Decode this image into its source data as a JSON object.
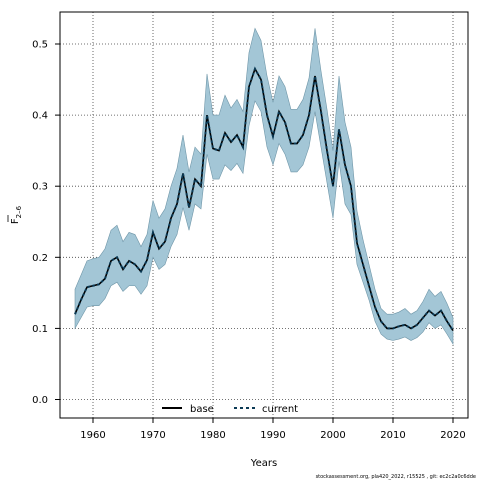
{
  "chart_data": {
    "type": "line",
    "title": "",
    "xlabel": "Years",
    "ylabel": "F̅ 2–6",
    "ylabel_main": "F",
    "ylabel_sub": "2–6",
    "xlim": [
      1954.5,
      2022.5
    ],
    "ylim": [
      -0.026,
      0.545
    ],
    "x_ticks": [
      1960,
      1970,
      1980,
      1990,
      2000,
      2010,
      2020
    ],
    "y_ticks": [
      0.0,
      0.1,
      0.2,
      0.3,
      0.4,
      0.5
    ],
    "y_tick_labels": [
      "0.0",
      "0.1",
      "0.2",
      "0.3",
      "0.4",
      "0.5"
    ],
    "grid": true,
    "legend_position": "bottom-center",
    "legend": [
      "base",
      "current"
    ],
    "colors": {
      "band": "#a3c6d6",
      "band_edge": "#6f96a8",
      "base": "#000000",
      "current": "#0b3a55"
    },
    "years": [
      1957,
      1958,
      1959,
      1960,
      1961,
      1962,
      1963,
      1964,
      1965,
      1966,
      1967,
      1968,
      1969,
      1970,
      1971,
      1972,
      1973,
      1974,
      1975,
      1976,
      1977,
      1978,
      1979,
      1980,
      1981,
      1982,
      1983,
      1984,
      1985,
      1986,
      1987,
      1988,
      1989,
      1990,
      1991,
      1992,
      1993,
      1994,
      1995,
      1996,
      1997,
      1998,
      1999,
      2000,
      2001,
      2002,
      2003,
      2004,
      2005,
      2006,
      2007,
      2008,
      2009,
      2010,
      2011,
      2012,
      2013,
      2014,
      2015,
      2016,
      2017,
      2018,
      2019,
      2020
    ],
    "series": [
      {
        "name": "base",
        "values": [
          0.12,
          0.14,
          0.158,
          0.16,
          0.162,
          0.17,
          0.195,
          0.2,
          0.183,
          0.195,
          0.19,
          0.18,
          0.196,
          0.235,
          0.212,
          0.222,
          0.255,
          0.275,
          0.318,
          0.27,
          0.31,
          0.3,
          0.4,
          0.353,
          0.35,
          0.375,
          0.362,
          0.372,
          0.355,
          0.44,
          0.465,
          0.45,
          0.4,
          0.37,
          0.405,
          0.39,
          0.36,
          0.36,
          0.372,
          0.4,
          0.455,
          0.405,
          0.35,
          0.3,
          0.38,
          0.33,
          0.3,
          0.22,
          0.19,
          0.16,
          0.13,
          0.11,
          0.1,
          0.1,
          0.103,
          0.105,
          0.1,
          0.105,
          0.115,
          0.125,
          0.118,
          0.125,
          0.11,
          0.097
        ]
      },
      {
        "name": "current",
        "values": [
          0.12,
          0.14,
          0.158,
          0.16,
          0.162,
          0.17,
          0.195,
          0.2,
          0.183,
          0.195,
          0.19,
          0.18,
          0.196,
          0.235,
          0.212,
          0.222,
          0.255,
          0.275,
          0.318,
          0.27,
          0.31,
          0.3,
          0.4,
          0.353,
          0.35,
          0.375,
          0.362,
          0.372,
          0.355,
          0.44,
          0.465,
          0.45,
          0.4,
          0.37,
          0.405,
          0.39,
          0.36,
          0.36,
          0.372,
          0.4,
          0.455,
          0.405,
          0.35,
          0.3,
          0.38,
          0.33,
          0.3,
          0.22,
          0.19,
          0.16,
          0.13,
          0.11,
          0.1,
          0.1,
          0.103,
          0.105,
          0.1,
          0.105,
          0.115,
          0.125,
          0.118,
          0.125,
          0.11,
          0.097
        ]
      }
    ],
    "band_lower": [
      0.1,
      0.115,
      0.13,
      0.132,
      0.132,
      0.142,
      0.16,
      0.165,
      0.152,
      0.16,
      0.16,
      0.148,
      0.16,
      0.2,
      0.183,
      0.19,
      0.215,
      0.232,
      0.27,
      0.238,
      0.275,
      0.268,
      0.345,
      0.31,
      0.31,
      0.33,
      0.322,
      0.332,
      0.318,
      0.385,
      0.42,
      0.405,
      0.355,
      0.33,
      0.36,
      0.345,
      0.32,
      0.32,
      0.33,
      0.355,
      0.405,
      0.355,
      0.305,
      0.255,
      0.335,
      0.275,
      0.26,
      0.19,
      0.165,
      0.14,
      0.11,
      0.092,
      0.085,
      0.083,
      0.085,
      0.088,
      0.083,
      0.087,
      0.095,
      0.108,
      0.1,
      0.105,
      0.092,
      0.078
    ],
    "band_upper": [
      0.155,
      0.175,
      0.195,
      0.198,
      0.2,
      0.212,
      0.238,
      0.245,
      0.222,
      0.235,
      0.232,
      0.215,
      0.232,
      0.28,
      0.255,
      0.268,
      0.3,
      0.325,
      0.372,
      0.32,
      0.355,
      0.345,
      0.458,
      0.4,
      0.4,
      0.428,
      0.41,
      0.422,
      0.405,
      0.488,
      0.522,
      0.505,
      0.455,
      0.418,
      0.455,
      0.44,
      0.408,
      0.408,
      0.422,
      0.452,
      0.522,
      0.462,
      0.408,
      0.35,
      0.455,
      0.39,
      0.355,
      0.265,
      0.225,
      0.19,
      0.155,
      0.128,
      0.12,
      0.12,
      0.123,
      0.128,
      0.12,
      0.125,
      0.138,
      0.155,
      0.145,
      0.152,
      0.135,
      0.115
    ]
  },
  "footer_note": "stockassessment.org, pla420_2022, r15525 , git: ec2c2a0c6dde"
}
